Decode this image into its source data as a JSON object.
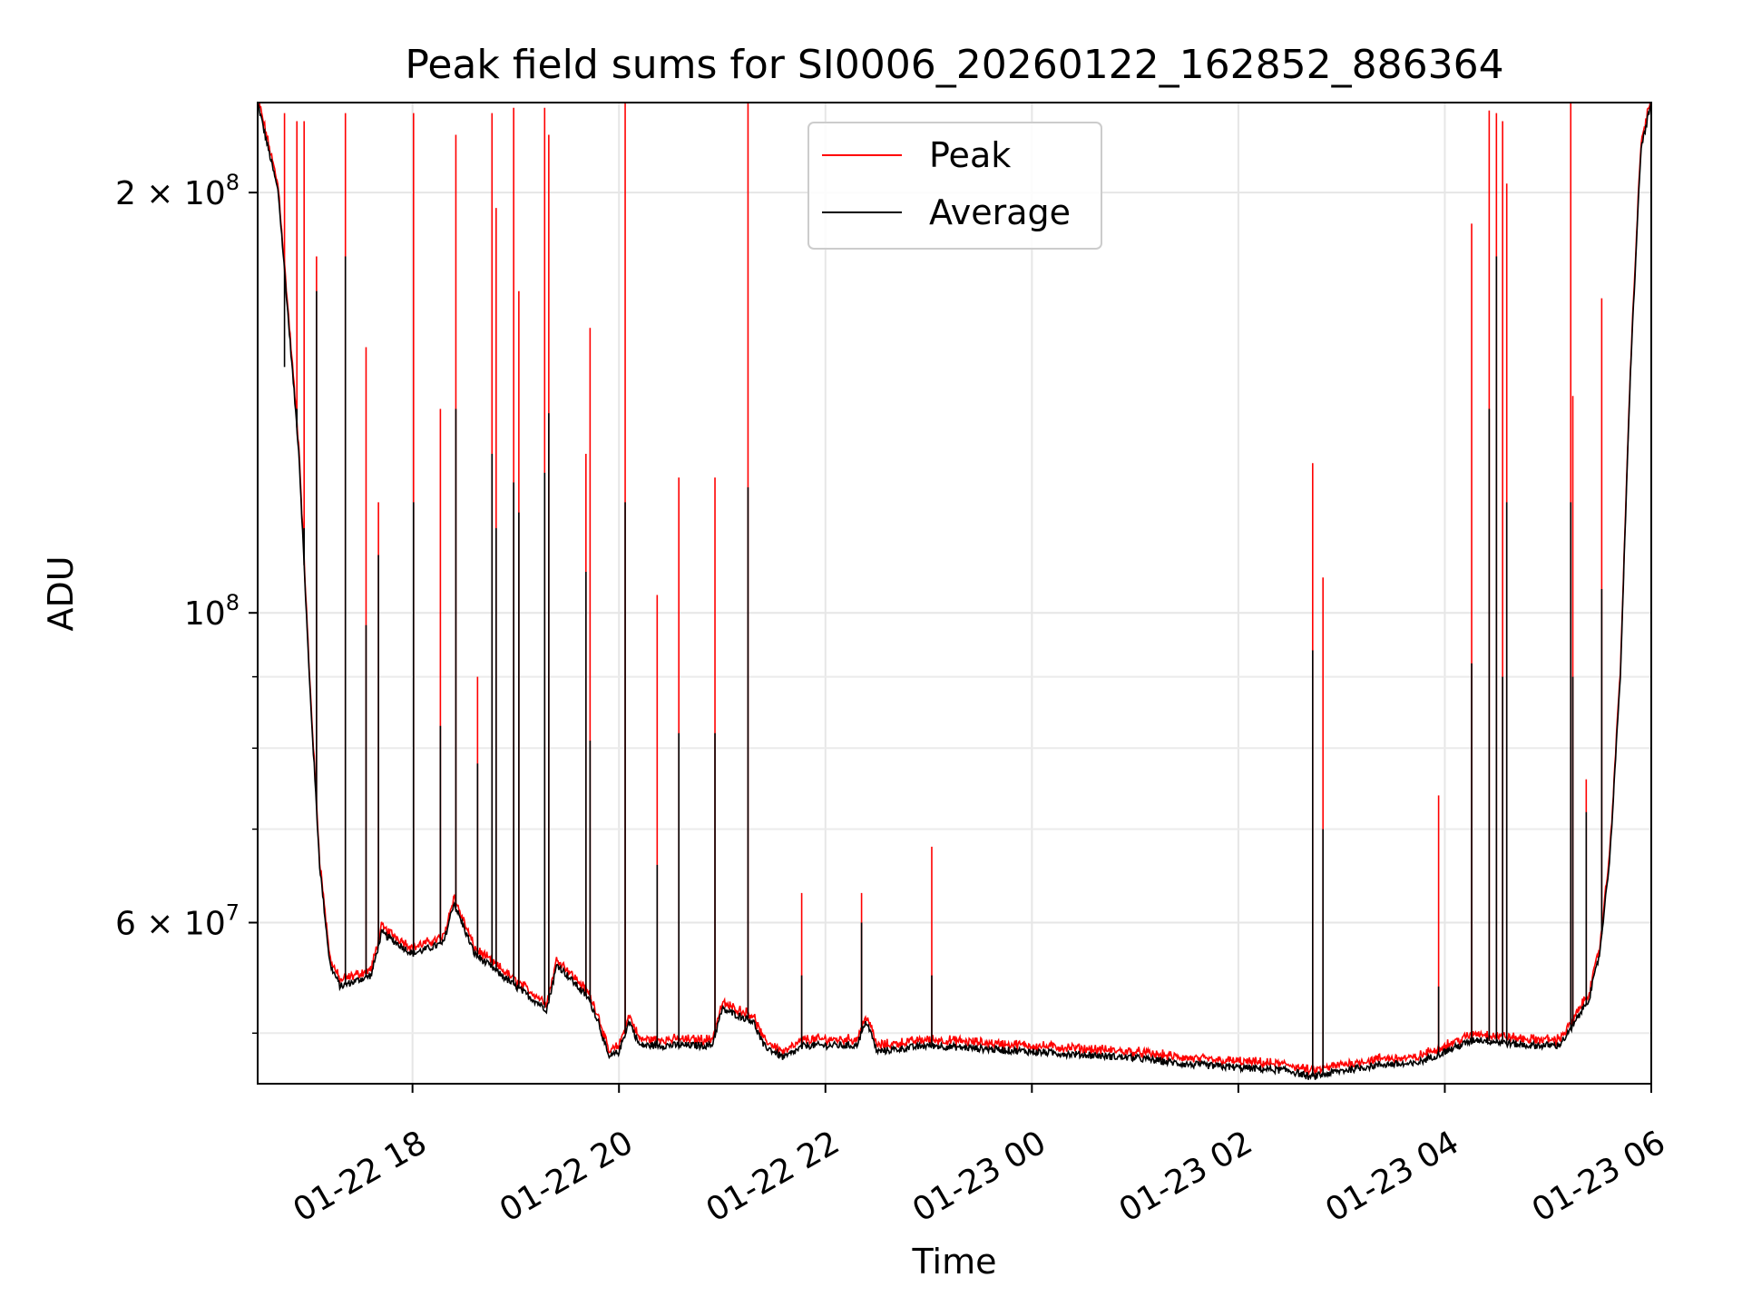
{
  "chart_data": {
    "type": "line",
    "title": "Peak field sums for SI0006_20260122_162852_886364",
    "xlabel": "Time",
    "ylabel": "ADU",
    "yscale": "log",
    "xlim_hours": [
      16.5,
      30.0
    ],
    "ylim": [
      46000000,
      232000000
    ],
    "grid": true,
    "legend_position": "upper center",
    "x_ticks": [
      {
        "hour": 18,
        "label": "01-22 18"
      },
      {
        "hour": 20,
        "label": "01-22 20"
      },
      {
        "hour": 22,
        "label": "01-22 22"
      },
      {
        "hour": 24,
        "label": "01-23 00"
      },
      {
        "hour": 26,
        "label": "01-23 02"
      },
      {
        "hour": 28,
        "label": "01-23 04"
      },
      {
        "hour": 30,
        "label": "01-23 06"
      }
    ],
    "y_ticks": [
      {
        "value": 200000000,
        "mantissa": "2",
        "exp": "8",
        "coef": true
      },
      {
        "value": 100000000,
        "mantissa": "",
        "exp": "8",
        "coef": false
      },
      {
        "value": 60000000,
        "mantissa": "6",
        "exp": "7",
        "coef": true
      }
    ],
    "y_minor_ticks": [
      50000000,
      70000000,
      80000000,
      90000000
    ],
    "series": [
      {
        "name": "Peak",
        "color": "#ff0000"
      },
      {
        "name": "Average",
        "color": "#000000"
      }
    ],
    "baseline": {
      "note": "approximate average baseline, hours since 2026-01-22 00:00 vs ADU",
      "hours": [
        16.5,
        16.7,
        16.9,
        17.0,
        17.1,
        17.2,
        17.3,
        17.6,
        17.7,
        18.0,
        18.3,
        18.4,
        18.6,
        19.0,
        19.3,
        19.4,
        19.5,
        19.7,
        19.8,
        19.9,
        20.0,
        20.1,
        20.2,
        20.5,
        20.9,
        21.0,
        21.3,
        21.4,
        21.6,
        21.8,
        22.3,
        22.4,
        22.5,
        23.0,
        24.0,
        25.0,
        25.5,
        26.5,
        26.7,
        27.0,
        27.4,
        27.7,
        28.0,
        28.3,
        28.8,
        29.1,
        29.2,
        29.4,
        29.5,
        29.6,
        29.7,
        29.8,
        29.9,
        30.0
      ],
      "values": [
        232000000,
        200000000,
        130000000,
        90000000,
        66000000,
        56000000,
        54000000,
        55000000,
        59000000,
        57000000,
        58000000,
        62000000,
        57000000,
        54000000,
        52000000,
        56000000,
        55000000,
        53000000,
        51000000,
        48000000,
        48500000,
        51000000,
        49000000,
        49000000,
        49000000,
        52000000,
        51000000,
        49000000,
        48000000,
        49000000,
        49000000,
        51000000,
        48500000,
        49000000,
        48500000,
        48000000,
        47500000,
        47000000,
        46500000,
        47000000,
        47500000,
        47500000,
        48500000,
        49500000,
        49000000,
        49000000,
        50000000,
        53000000,
        57000000,
        67000000,
        90000000,
        150000000,
        215000000,
        232000000
      ]
    },
    "spikes": {
      "note": "approximate narrow transients; peak = red tip, avg = black tip",
      "hours": [
        16.76,
        16.88,
        16.95,
        17.07,
        17.35,
        17.55,
        17.67,
        18.01,
        18.27,
        18.42,
        18.63,
        18.77,
        18.81,
        18.98,
        19.03,
        19.28,
        19.32,
        19.68,
        19.72,
        20.06,
        20.37,
        20.58,
        20.93,
        21.25,
        21.77,
        22.35,
        23.03,
        26.72,
        26.82,
        27.94,
        28.26,
        28.43,
        28.5,
        28.56,
        28.6,
        29.22,
        29.24,
        29.37,
        29.52
      ],
      "peak": [
        228000000,
        225000000,
        225000000,
        180000000,
        228000000,
        155000000,
        120000000,
        228000000,
        140000000,
        220000000,
        90000000,
        228000000,
        195000000,
        230000000,
        170000000,
        230000000,
        220000000,
        130000000,
        160000000,
        233000000,
        103000000,
        125000000,
        125000000,
        232000000,
        63000000,
        63000000,
        68000000,
        128000000,
        106000000,
        74000000,
        190000000,
        229000000,
        228000000,
        225000000,
        203000000,
        232000000,
        143000000,
        76000000,
        168000000
      ],
      "avg": [
        150000000,
        140000000,
        115000000,
        170000000,
        180000000,
        98000000,
        110000000,
        120000000,
        83000000,
        140000000,
        78000000,
        130000000,
        115000000,
        124000000,
        118000000,
        126000000,
        139000000,
        107000000,
        81000000,
        120000000,
        66000000,
        82000000,
        82000000,
        123000000,
        55000000,
        60000000,
        55000000,
        94000000,
        70000000,
        54000000,
        92000000,
        140000000,
        180000000,
        90000000,
        120000000,
        120000000,
        90000000,
        72000000,
        104000000
      ]
    }
  }
}
